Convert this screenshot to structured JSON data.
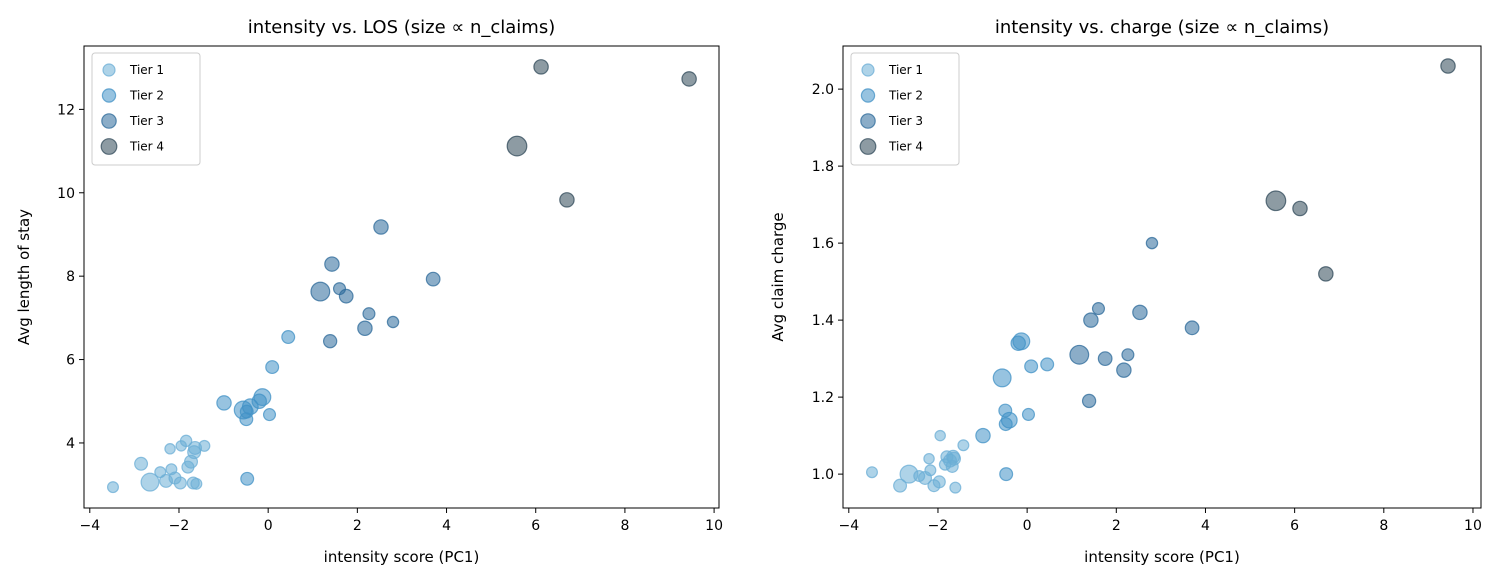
{
  "tier_colors": {
    "Tier 1": "#6baed6",
    "Tier 2": "#4292c6",
    "Tier 3": "#2c6a9a",
    "Tier 4": "#2f4858"
  },
  "chart_data": [
    {
      "type": "scatter",
      "title": "intensity vs. LOS (size ∝ n_claims)",
      "xlabel": "intensity score (PC1)",
      "ylabel": "Avg length of stay",
      "xlim": [
        -4.13,
        10.11
      ],
      "ylim": [
        2.44,
        13.52
      ],
      "xticks": [
        -4,
        -2,
        0,
        2,
        4,
        6,
        8,
        10
      ],
      "yticks": [
        4,
        6,
        8,
        10,
        12
      ],
      "grid": false,
      "legend": {
        "position": "top-left",
        "entries": [
          "Tier 1",
          "Tier 2",
          "Tier 3",
          "Tier 4"
        ]
      },
      "yfield": "los"
    },
    {
      "type": "scatter",
      "title": "intensity vs. charge (size ∝ n_claims)",
      "xlabel": "intensity score (PC1)",
      "ylabel": "Avg claim charge",
      "xlim": [
        -4.13,
        10.18
      ],
      "ylim": [
        0.912,
        2.112
      ],
      "xticks": [
        -4,
        -2,
        0,
        2,
        4,
        6,
        8,
        10
      ],
      "yticks": [
        1.0,
        1.2,
        1.4,
        1.6,
        1.8,
        2.0
      ],
      "grid": false,
      "legend": {
        "position": "top-left",
        "entries": [
          "Tier 1",
          "Tier 2",
          "Tier 3",
          "Tier 4"
        ]
      },
      "yfield": "charge"
    }
  ],
  "points": [
    {
      "tier": "Tier 4",
      "x": 6.12,
      "los": 13.02,
      "charge": 1.69,
      "n": 3
    },
    {
      "tier": "Tier 4",
      "x": 9.44,
      "los": 12.73,
      "charge": 2.06,
      "n": 3
    },
    {
      "tier": "Tier 4",
      "x": 5.58,
      "los": 11.12,
      "charge": 1.71,
      "n": 8
    },
    {
      "tier": "Tier 4",
      "x": 6.7,
      "los": 9.83,
      "charge": 1.52,
      "n": 3
    },
    {
      "tier": "Tier 3",
      "x": 2.53,
      "los": 9.18,
      "charge": 1.42,
      "n": 3
    },
    {
      "tier": "Tier 3",
      "x": 1.43,
      "los": 8.29,
      "charge": 1.4,
      "n": 3
    },
    {
      "tier": "Tier 3",
      "x": 1.17,
      "los": 7.63,
      "charge": 1.31,
      "n": 7
    },
    {
      "tier": "Tier 3",
      "x": 1.6,
      "los": 7.7,
      "charge": 1.43,
      "n": 1.5
    },
    {
      "tier": "Tier 3",
      "x": 1.75,
      "los": 7.52,
      "charge": 1.3,
      "n": 2.5
    },
    {
      "tier": "Tier 3",
      "x": 2.26,
      "los": 7.1,
      "charge": 1.31,
      "n": 1.5
    },
    {
      "tier": "Tier 3",
      "x": 2.17,
      "los": 6.75,
      "charge": 1.27,
      "n": 3
    },
    {
      "tier": "Tier 3",
      "x": 2.8,
      "los": 6.9,
      "charge": 1.6,
      "n": 1.2
    },
    {
      "tier": "Tier 3",
      "x": 3.7,
      "los": 7.93,
      "charge": 1.38,
      "n": 2.5
    },
    {
      "tier": "Tier 3",
      "x": 1.39,
      "los": 6.44,
      "charge": 1.19,
      "n": 2.2
    },
    {
      "tier": "Tier 2",
      "x": 0.45,
      "los": 6.54,
      "charge": 1.285,
      "n": 2
    },
    {
      "tier": "Tier 2",
      "x": 0.09,
      "los": 5.82,
      "charge": 1.28,
      "n": 2
    },
    {
      "tier": "Tier 2",
      "x": -0.13,
      "los": 5.1,
      "charge": 1.345,
      "n": 5
    },
    {
      "tier": "Tier 2",
      "x": -0.2,
      "los": 5.0,
      "charge": 1.34,
      "n": 3
    },
    {
      "tier": "Tier 2",
      "x": -0.56,
      "los": 4.79,
      "charge": 1.25,
      "n": 6
    },
    {
      "tier": "Tier 2",
      "x": -0.4,
      "los": 4.87,
      "charge": 1.14,
      "n": 4
    },
    {
      "tier": "Tier 2",
      "x": -0.99,
      "los": 4.96,
      "charge": 1.1,
      "n": 3
    },
    {
      "tier": "Tier 2",
      "x": -0.49,
      "los": 4.57,
      "charge": 1.165,
      "n": 2
    },
    {
      "tier": "Tier 2",
      "x": -0.48,
      "los": 4.75,
      "charge": 1.13,
      "n": 2
    },
    {
      "tier": "Tier 2",
      "x": 0.03,
      "los": 4.68,
      "charge": 1.155,
      "n": 1.5
    },
    {
      "tier": "Tier 2",
      "x": -0.47,
      "los": 3.14,
      "charge": 1.0,
      "n": 2
    },
    {
      "tier": "Tier 1",
      "x": -3.48,
      "los": 2.94,
      "charge": 1.005,
      "n": 1
    },
    {
      "tier": "Tier 1",
      "x": -2.85,
      "los": 3.5,
      "charge": 0.97,
      "n": 2
    },
    {
      "tier": "Tier 1",
      "x": -2.65,
      "los": 3.06,
      "charge": 1.0,
      "n": 6
    },
    {
      "tier": "Tier 1",
      "x": -2.29,
      "los": 3.09,
      "charge": 0.99,
      "n": 2
    },
    {
      "tier": "Tier 1",
      "x": -2.42,
      "los": 3.3,
      "charge": 0.995,
      "n": 1
    },
    {
      "tier": "Tier 1",
      "x": -2.17,
      "los": 3.37,
      "charge": 1.01,
      "n": 1
    },
    {
      "tier": "Tier 1",
      "x": -2.09,
      "los": 3.16,
      "charge": 0.97,
      "n": 1.5
    },
    {
      "tier": "Tier 1",
      "x": -2.2,
      "los": 3.86,
      "charge": 1.04,
      "n": 0.8
    },
    {
      "tier": "Tier 1",
      "x": -1.95,
      "los": 3.93,
      "charge": 1.1,
      "n": 0.8
    },
    {
      "tier": "Tier 1",
      "x": -1.84,
      "los": 4.05,
      "charge": 1.025,
      "n": 1.2
    },
    {
      "tier": "Tier 1",
      "x": -1.8,
      "los": 3.42,
      "charge": 1.045,
      "n": 1.5
    },
    {
      "tier": "Tier 1",
      "x": -1.73,
      "los": 3.55,
      "charge": 1.035,
      "n": 2
    },
    {
      "tier": "Tier 1",
      "x": -1.66,
      "los": 3.78,
      "charge": 1.045,
      "n": 2
    },
    {
      "tier": "Tier 1",
      "x": -1.64,
      "los": 3.88,
      "charge": 1.04,
      "n": 2
    },
    {
      "tier": "Tier 1",
      "x": -1.43,
      "los": 3.93,
      "charge": 1.075,
      "n": 1
    },
    {
      "tier": "Tier 1",
      "x": -1.97,
      "los": 3.04,
      "charge": 0.98,
      "n": 1.5
    },
    {
      "tier": "Tier 1",
      "x": -1.68,
      "los": 3.04,
      "charge": 1.02,
      "n": 1.5
    },
    {
      "tier": "Tier 1",
      "x": -1.61,
      "los": 3.02,
      "charge": 0.965,
      "n": 1
    }
  ]
}
